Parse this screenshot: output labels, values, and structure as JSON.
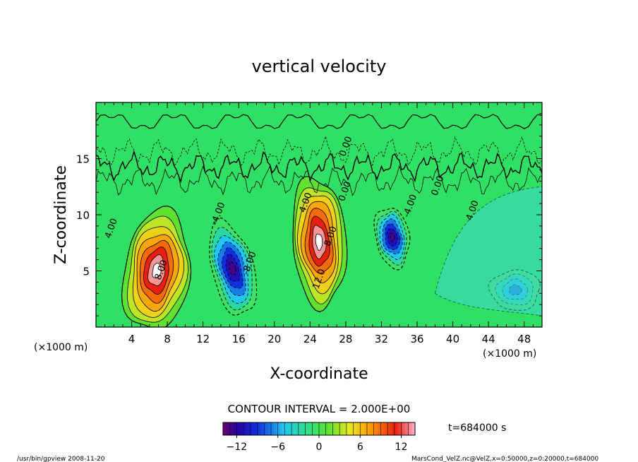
{
  "chart_data": {
    "type": "heatmap",
    "title": "vertical velocity",
    "xlabel": "X-coordinate",
    "ylabel": "Z-coordinate",
    "x_unit": "(×1000 m)",
    "y_unit": "(×1000 m)",
    "xlim": [
      0,
      50
    ],
    "ylim": [
      0,
      20
    ],
    "xticks": [
      4,
      8,
      12,
      16,
      20,
      24,
      28,
      32,
      36,
      40,
      44,
      48
    ],
    "yticks": [
      5,
      10,
      15
    ],
    "contour_interval_text": "CONTOUR INTERVAL = 2.000E+00",
    "time_label": "t=684000 s",
    "colorbar": {
      "range": [
        -14,
        14
      ],
      "ticks": [
        -12,
        -6,
        0,
        6,
        12
      ],
      "tick_labels": [
        "−12",
        "−6",
        "0",
        "6",
        "12"
      ]
    },
    "contour_labels": [
      {
        "text": "4.00",
        "x": 2,
        "z": 8.7
      },
      {
        "text": "8.00",
        "x": 7.6,
        "z": 5.0
      },
      {
        "text": "-8.00",
        "x": 17.5,
        "z": 5.6
      },
      {
        "text": "-4.00",
        "x": 14.0,
        "z": 10.0
      },
      {
        "text": "4.00",
        "x": 23.8,
        "z": 11.0
      },
      {
        "text": "8.00",
        "x": 26.6,
        "z": 8.0
      },
      {
        "text": "12.0",
        "x": 25.3,
        "z": 4.2
      },
      {
        "text": "0.00",
        "x": 28.2,
        "z": 12.0
      },
      {
        "text": "0.00",
        "x": 28.3,
        "z": 16.0
      },
      {
        "text": "-4.00",
        "x": 35.5,
        "z": 10.7
      },
      {
        "text": "0.00",
        "x": 38.6,
        "z": 12.5
      },
      {
        "text": "4.00",
        "x": 42.5,
        "z": 10.3
      }
    ],
    "cells": [
      {
        "x": 6.8,
        "z": 5.0,
        "rx": 3.7,
        "rz": 5.4,
        "value": 14,
        "tilt": -0.15
      },
      {
        "x": 15.3,
        "z": 5.2,
        "rx": 2.4,
        "rz": 4.2,
        "value": -13,
        "tilt": 0.35
      },
      {
        "x": 25.0,
        "z": 7.6,
        "rx": 3.0,
        "rz": 5.8,
        "value": 15,
        "tilt": 0.1
      },
      {
        "x": 33.2,
        "z": 8.0,
        "rx": 1.9,
        "rz": 2.7,
        "value": -12,
        "tilt": 0.2
      },
      {
        "x": 47.0,
        "z": 3.3,
        "rx": 2.8,
        "rz": 1.8,
        "value": -6,
        "tilt": 0.0
      }
    ]
  },
  "footer": {
    "left": "/usr/bin/gpview   2008-11-20",
    "right": "MarsCond_VelZ.nc@VelZ,x=0:50000,z=0:20000,t=684000"
  }
}
